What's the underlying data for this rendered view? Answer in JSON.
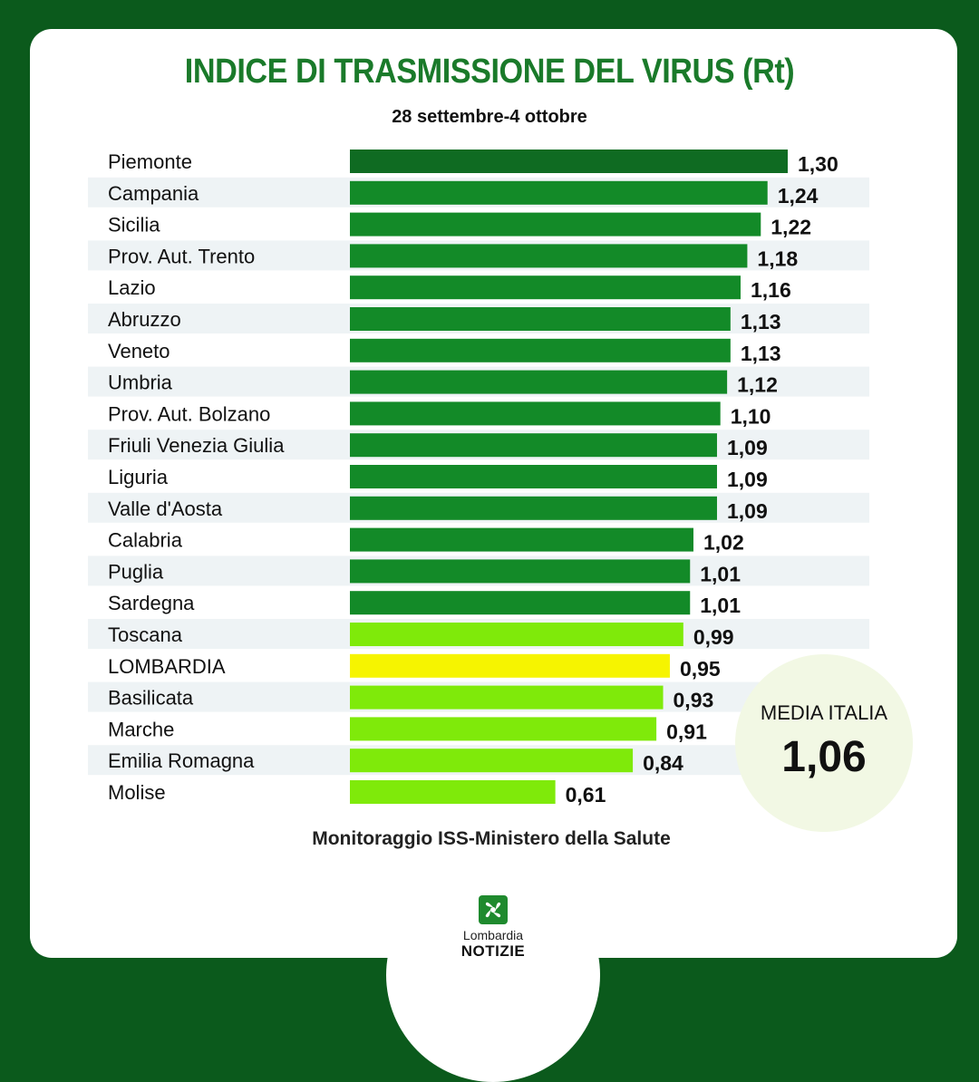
{
  "chart_data": {
    "type": "bar",
    "orientation": "horizontal",
    "title": "INDICE DI TRASMISSIONE DEL VIRUS (Rt)",
    "subtitle": "28 settembre-4 ottobre",
    "categories": [
      "Piemonte",
      "Campania",
      "Sicilia",
      "Prov. Aut. Trento",
      "Lazio",
      "Abruzzo",
      "Veneto",
      "Umbria",
      "Prov. Aut. Bolzano",
      "Friuli Venezia Giulia",
      "Liguria",
      "Valle d'Aosta",
      "Calabria",
      "Puglia",
      "Sardegna",
      "Toscana",
      "LOMBARDIA",
      "Basilicata",
      "Marche",
      "Emilia Romagna",
      "Molise"
    ],
    "values": [
      1.3,
      1.24,
      1.22,
      1.18,
      1.16,
      1.13,
      1.13,
      1.12,
      1.1,
      1.09,
      1.09,
      1.09,
      1.02,
      1.01,
      1.01,
      0.99,
      0.95,
      0.93,
      0.91,
      0.84,
      0.61
    ],
    "value_labels": [
      "1,30",
      "1,24",
      "1,22",
      "1,18",
      "1,16",
      "1,13",
      "1,13",
      "1,12",
      "1,10",
      "1,09",
      "1,09",
      "1,09",
      "1,02",
      "1,01",
      "1,01",
      "0,99",
      "0,95",
      "0,93",
      "0,91",
      "0,84",
      "0,61"
    ],
    "bar_colors": [
      "#0f6b22",
      "#138a28",
      "#138a28",
      "#138a28",
      "#138a28",
      "#138a28",
      "#138a28",
      "#138a28",
      "#138a28",
      "#138a28",
      "#138a28",
      "#138a28",
      "#138a28",
      "#138a28",
      "#138a28",
      "#7fea0a",
      "#f6f400",
      "#7fea0a",
      "#7fea0a",
      "#7fea0a",
      "#7fea0a"
    ],
    "xlim": [
      0,
      1.3
    ],
    "grid": false,
    "legend": "none"
  },
  "media": {
    "label": "MEDIA ITALIA",
    "value": "1,06"
  },
  "source": "Monitoraggio ISS-Ministero della Salute",
  "logo": {
    "line1": "Lombardia",
    "line2": "NOTIZIE"
  },
  "colors": {
    "background": "#0b5a1c",
    "title": "#1a7a2a",
    "row_stripe": "#eef3f5"
  }
}
